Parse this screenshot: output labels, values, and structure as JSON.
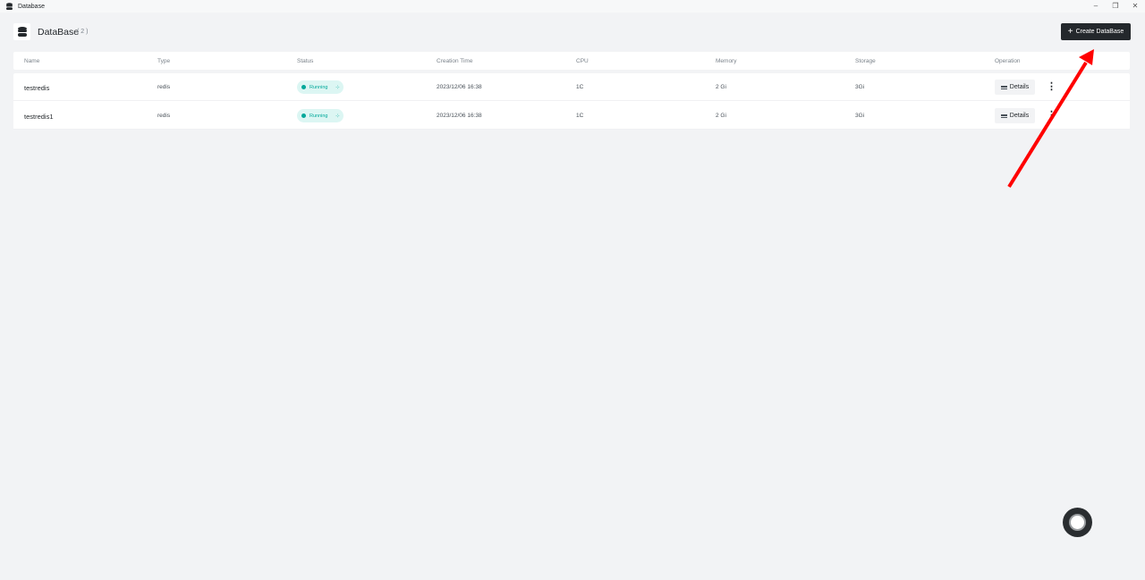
{
  "window": {
    "title": "Database",
    "minimize": "–",
    "restore": "❐",
    "close": "✕"
  },
  "header": {
    "title": "DataBase",
    "count": "( 2 )",
    "create_label": "Create DataBase",
    "create_icon": "+"
  },
  "table": {
    "columns": [
      "Name",
      "Type",
      "Status",
      "Creation Time",
      "CPU",
      "Memory",
      "Storage",
      "Operation"
    ],
    "rows": [
      {
        "name": "testredis",
        "type": "redis",
        "status": "Running",
        "created": "2023/12/06 16:38",
        "cpu": "1C",
        "memory": "2 Gi",
        "storage": "3Gi",
        "action": "Details"
      },
      {
        "name": "testredis1",
        "type": "redis",
        "status": "Running",
        "created": "2023/12/06 16:38",
        "cpu": "1C",
        "memory": "2 Gi",
        "storage": "3Gi",
        "action": "Details"
      }
    ]
  },
  "colors": {
    "accent": "#24282c",
    "status_running": "#00a89a",
    "annotation_arrow": "#ff0000"
  }
}
